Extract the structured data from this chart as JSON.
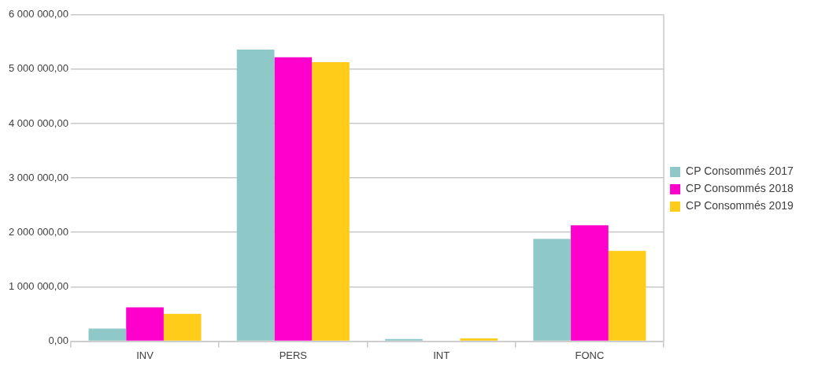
{
  "chart_data": {
    "type": "bar",
    "categories": [
      "INV",
      "PERS",
      "INT",
      "FONC"
    ],
    "series": [
      {
        "name": "CP Consommés 2017",
        "color": "#8fc8c8",
        "values": [
          230000,
          5360000,
          40000,
          1880000
        ]
      },
      {
        "name": "CP Consommés 2018",
        "color": "#ff00cc",
        "values": [
          620000,
          5220000,
          0,
          2130000
        ]
      },
      {
        "name": "CP Consommés 2019",
        "color": "#ffcc1a",
        "values": [
          500000,
          5130000,
          50000,
          1660000
        ]
      }
    ],
    "ylim": [
      0,
      6000000
    ],
    "yticks": [
      {
        "value": 0,
        "label": "0,00"
      },
      {
        "value": 1000000,
        "label": "1 000 000,00"
      },
      {
        "value": 2000000,
        "label": "2 000 000,00"
      },
      {
        "value": 3000000,
        "label": "3 000 000,00"
      },
      {
        "value": 4000000,
        "label": "4 000 000,00"
      },
      {
        "value": 5000000,
        "label": "5 000 000,00"
      },
      {
        "value": 6000000,
        "label": "6 000 000,00"
      }
    ],
    "grid": "y",
    "legend": "right"
  }
}
